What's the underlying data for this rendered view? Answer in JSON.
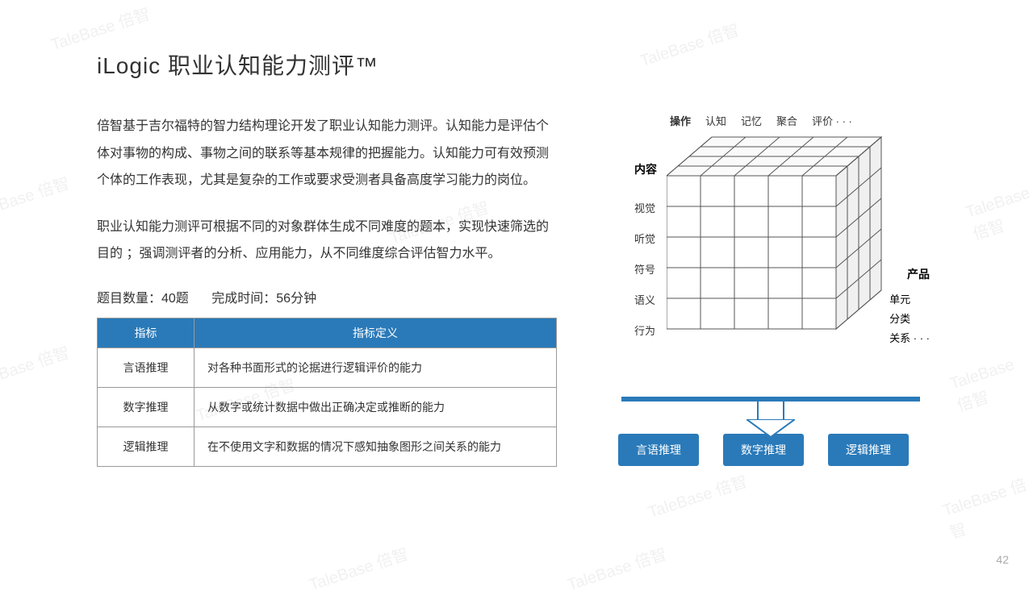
{
  "title": "iLogic 职业认知能力测评™",
  "para1": "倍智基于吉尔福特的智力结构理论开发了职业认知能力测评。认知能力是评估个体对事物的构成、事物之间的联系等基本规律的把握能力。认知能力可有效预测个体的工作表现，尤其是复杂的工作或要求受测者具备高度学习能力的岗位。",
  "para2": "职业认知能力测评可根据不同的对象群体生成不同难度的题本，实现快速筛选的目的 ；强调测评者的分析、应用能力，从不同维度综合评估智力水平。",
  "meta_count": "题目数量：40题",
  "meta_time": "完成时间：56分钟",
  "table": {
    "headers": [
      "指标",
      "指标定义"
    ],
    "rows": [
      {
        "ind": "言语推理",
        "def": "对各种书面形式的论据进行逻辑评价的能力"
      },
      {
        "ind": "数字推理",
        "def": "从数字或统计数据中做出正确决定或推断的能力"
      },
      {
        "ind": "逻辑推理",
        "def": "在不使用文字和数据的情况下感知抽象图形之间关系的能力"
      }
    ]
  },
  "cube": {
    "top_header": "操作",
    "top_labels": [
      "认知",
      "记忆",
      "聚合",
      "评价 · · ·"
    ],
    "left_header": "内容",
    "left_labels": [
      "视觉",
      "听觉",
      "符号",
      "语义",
      "行为"
    ],
    "right_header": "产品",
    "right_labels": [
      "单元",
      "分类",
      "关系 · · ·"
    ],
    "grid_cols": 5,
    "grid_rows": 5,
    "depth_steps": 4,
    "line_width": 1,
    "front_fill": "#ffffff",
    "side_fill": "#f0f0f0",
    "top_fill": "#fafafa",
    "stroke": "#555555"
  },
  "result_boxes": [
    "言语推理",
    "数字推理",
    "逻辑推理"
  ],
  "colors": {
    "accent": "#2a7ab9",
    "text": "#333333",
    "border": "#999999"
  },
  "page_number": "42",
  "watermark_text": "TaleBase 倍智"
}
